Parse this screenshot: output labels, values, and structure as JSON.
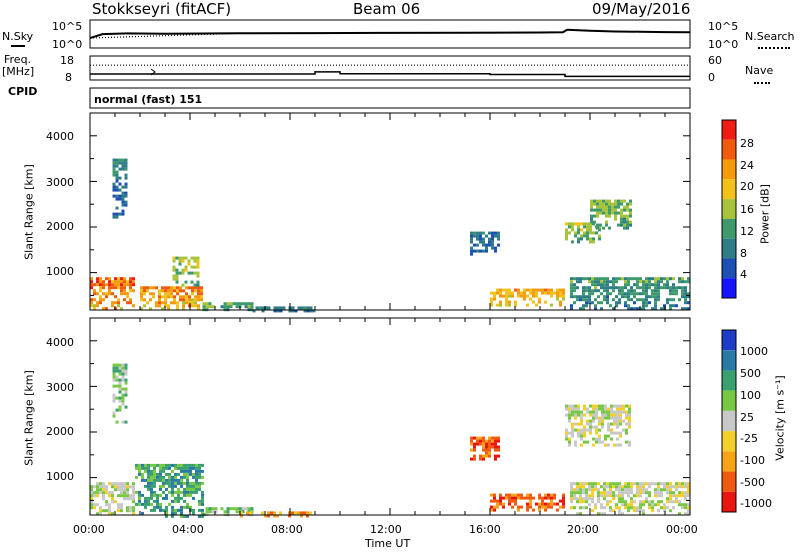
{
  "header": {
    "station": "Stokkseyri (fitACF)",
    "beam": "Beam 06",
    "date": "09/May/2016"
  },
  "strip": {
    "nsky_label": "N.Sky",
    "nsearch_label": "N.Search",
    "noise_ticks": [
      "10^5",
      "10^0"
    ],
    "freq_label": "Freq.",
    "freq_unit": "[MHz]",
    "freq_ticks": [
      "18",
      "8"
    ],
    "nave_label": "Nave",
    "nave_ticks": [
      "60",
      "0"
    ],
    "cpid_label": "CPID",
    "cpid_value": "normal (fast) 151"
  },
  "colors": {
    "power": [
      "#1414ff",
      "#1e4fb4",
      "#2f7d86",
      "#3e9a6c",
      "#a6c33a",
      "#f2c21a",
      "#f59a0a",
      "#f05a0a",
      "#ee1c12"
    ],
    "velocity": [
      "#e81410",
      "#f05a10",
      "#f5a418",
      "#f3cf2a",
      "#c8c8c8",
      "#78c844",
      "#3aa070",
      "#2a7aa6",
      "#1e3cc8"
    ]
  },
  "chart_data": [
    {
      "type": "line",
      "panel": "noise",
      "yscale": "log",
      "ylim": [
        1,
        100000
      ],
      "series": [
        {
          "name": "N.Sky",
          "x": [
            "00:00",
            "00:30",
            "01:30",
            "03:00",
            "06:00",
            "09:00",
            "12:00",
            "15:00",
            "18:00",
            "18:55",
            "19:05",
            "20:00",
            "21:00",
            "22:00",
            "23:00",
            "24:00"
          ],
          "y": [
            60,
            300,
            400,
            350,
            420,
            450,
            500,
            520,
            600,
            650,
            1800,
            1200,
            900,
            800,
            700,
            650
          ]
        },
        {
          "name": "N.Search",
          "x": [
            "00:00",
            "06:00",
            "12:00",
            "18:00",
            "18:55",
            "19:05",
            "21:00",
            "24:00"
          ],
          "y": [
            60,
            420,
            500,
            600,
            650,
            1800,
            900,
            650
          ]
        }
      ]
    },
    {
      "type": "line",
      "panel": "frequency-nave",
      "series": [
        {
          "name": "Freq.",
          "units": "MHz",
          "ylim": [
            8,
            18
          ],
          "x": [
            "00:00",
            "09:00",
            "09:00",
            "10:00",
            "10:00",
            "16:00",
            "16:00",
            "19:00",
            "19:00",
            "24:00"
          ],
          "y": [
            10.5,
            10.5,
            11.4,
            11.4,
            10.6,
            10.6,
            10.3,
            10.3,
            9.5,
            9.5
          ]
        },
        {
          "name": "Nave",
          "ylim": [
            0,
            60
          ],
          "x": [
            "00:00",
            "24:00"
          ],
          "y": [
            37,
            37
          ]
        }
      ]
    },
    {
      "type": "heatmap",
      "panel": "power",
      "xlabel": "",
      "ylabel": "Slant Range [km]",
      "xlim": [
        "00:00",
        "24:00"
      ],
      "ylim": [
        180,
        4500
      ],
      "colorbar": {
        "label": "Power [dB]",
        "ticks": [
          4,
          8,
          12,
          16,
          20,
          24,
          28
        ],
        "range": [
          0,
          30
        ]
      },
      "regions": [
        {
          "t": [
            0.0,
            1.8
          ],
          "r": [
            180,
            900
          ],
          "level": 19,
          "spread": 10
        },
        {
          "t": [
            2.0,
            4.5
          ],
          "r": [
            180,
            700
          ],
          "level": 18,
          "spread": 9
        },
        {
          "t": [
            3.3,
            4.3
          ],
          "r": [
            700,
            1350
          ],
          "level": 12,
          "spread": 6
        },
        {
          "t": [
            4.5,
            6.5
          ],
          "r": [
            180,
            350
          ],
          "level": 10,
          "spread": 5
        },
        {
          "t": [
            6.5,
            9.0
          ],
          "r": [
            180,
            260
          ],
          "level": 7,
          "spread": 4
        },
        {
          "t": [
            16.0,
            19.0
          ],
          "r": [
            300,
            650
          ],
          "level": 17,
          "spread": 7
        },
        {
          "t": [
            15.2,
            16.3
          ],
          "r": [
            1400,
            1900
          ],
          "level": 6,
          "spread": 4
        },
        {
          "t": [
            19.0,
            20.4
          ],
          "r": [
            1700,
            2100
          ],
          "level": 12,
          "spread": 6
        },
        {
          "t": [
            20.0,
            21.6
          ],
          "r": [
            2000,
            2600
          ],
          "level": 11,
          "spread": 6
        },
        {
          "t": [
            19.2,
            24.0
          ],
          "r": [
            200,
            900
          ],
          "level": 8,
          "spread": 6
        },
        {
          "t": [
            0.9,
            1.5
          ],
          "r": [
            2200,
            3500
          ],
          "level": 6,
          "spread": 5
        }
      ]
    },
    {
      "type": "heatmap",
      "panel": "velocity",
      "xlabel": "Time UT",
      "ylabel": "Slant Range [km]",
      "xlim": [
        "00:00",
        "24:00"
      ],
      "xticks": [
        "00:00",
        "04:00",
        "08:00",
        "12:00",
        "16:00",
        "20:00",
        "00:00"
      ],
      "ylim": [
        180,
        4500
      ],
      "yticks": [
        1000,
        2000,
        3000,
        4000
      ],
      "colorbar": {
        "label": "Velocity [m s⁻¹]",
        "ticks": [
          "1000",
          "500",
          "100",
          "25",
          "-25",
          "-100",
          "-500",
          "-1000"
        ]
      },
      "regions": [
        {
          "t": [
            0.0,
            1.8
          ],
          "r": [
            180,
            900
          ],
          "class": 4
        },
        {
          "t": [
            1.8,
            4.5
          ],
          "r": [
            180,
            1300
          ],
          "class": 6
        },
        {
          "t": [
            4.5,
            6.5
          ],
          "r": [
            180,
            350
          ],
          "class": 5
        },
        {
          "t": [
            6.0,
            9.0
          ],
          "r": [
            180,
            260
          ],
          "class": 2
        },
        {
          "t": [
            16.0,
            19.0
          ],
          "r": [
            300,
            650
          ],
          "class": 1
        },
        {
          "t": [
            15.2,
            16.3
          ],
          "r": [
            1400,
            1900
          ],
          "class": 1
        },
        {
          "t": [
            19.0,
            21.6
          ],
          "r": [
            1700,
            2600
          ],
          "class": 4
        },
        {
          "t": [
            19.2,
            24.0
          ],
          "r": [
            200,
            900
          ],
          "class": 4
        },
        {
          "t": [
            0.9,
            1.5
          ],
          "r": [
            2200,
            3500
          ],
          "class": 5
        }
      ]
    }
  ]
}
